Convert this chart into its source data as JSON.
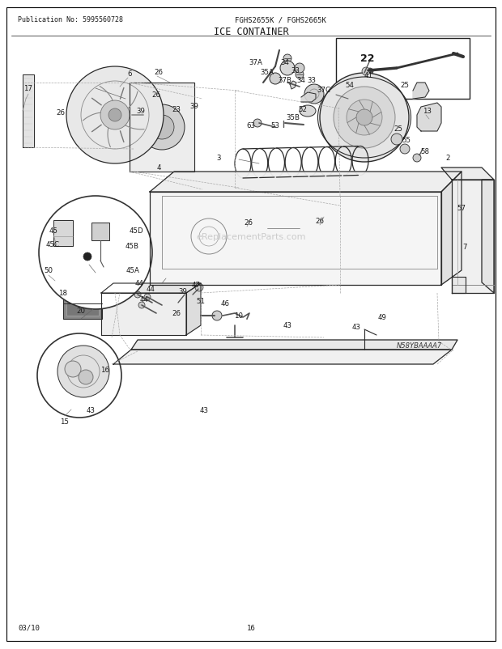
{
  "page_width": 6.2,
  "page_height": 8.03,
  "dpi": 100,
  "bg_color": "#ffffff",
  "header_left": "Publication No: 5995560728",
  "header_center": "FGHS2655K / FGHS2665K",
  "title": "ICE CONTAINER",
  "footer_left": "03/10",
  "footer_center": "16",
  "diagram_id": "N58YBAAAA7",
  "text_color": "#1a1a1a",
  "line_color": "#2a2a2a",
  "light_gray": "#d8d8d8",
  "mid_gray": "#b0b0b0",
  "dark_gray": "#666666"
}
